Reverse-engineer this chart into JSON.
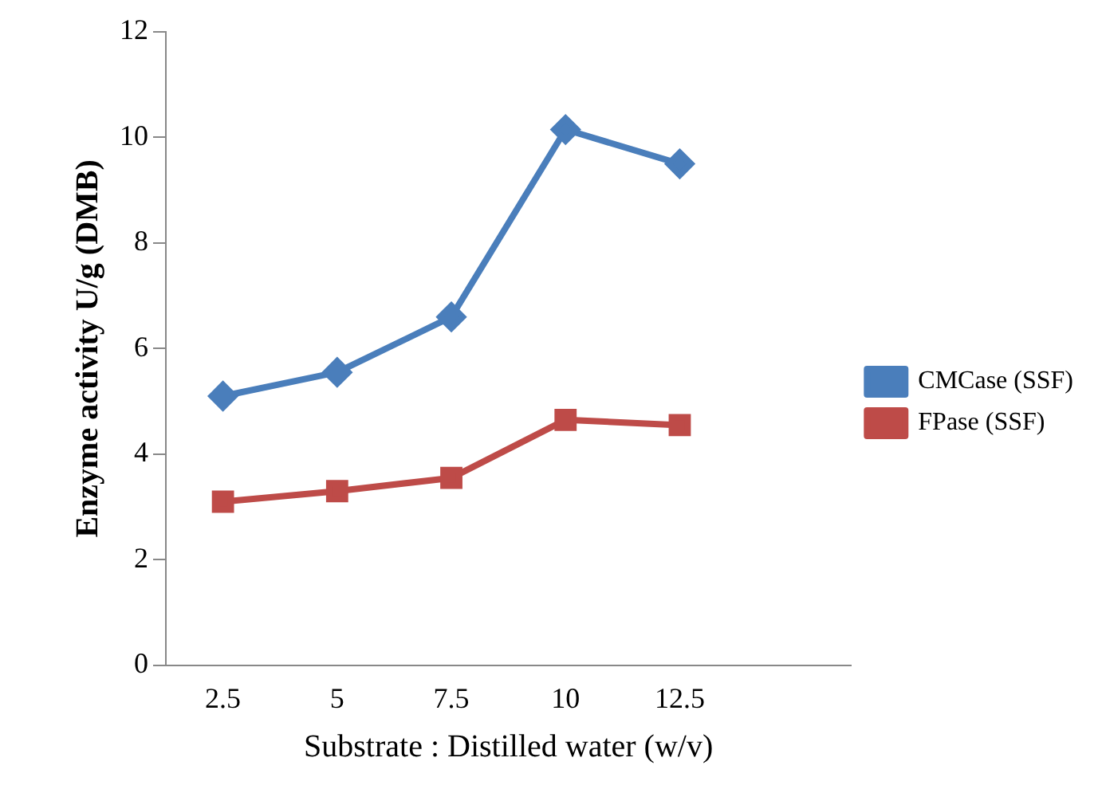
{
  "chart_data": {
    "type": "line",
    "xlabel": "Substrate : Distilled water (w/v)",
    "ylabel": "Enzyme activity U/g (DMB)",
    "categories": [
      "2.5",
      "5",
      "7.5",
      "10",
      "12.5",
      null
    ],
    "series": [
      {
        "name": "CMCase (SSF)",
        "color": "#4a7ebb",
        "marker": "diamond",
        "values": [
          5.1,
          5.55,
          6.6,
          10.15,
          9.5,
          null
        ]
      },
      {
        "name": "FPase (SSF)",
        "color": "#be4b48",
        "marker": "square",
        "values": [
          3.1,
          3.3,
          3.55,
          4.65,
          4.55,
          null
        ]
      }
    ],
    "ylim": [
      0,
      12
    ],
    "yticks": [
      0,
      2,
      4,
      6,
      8,
      10,
      12
    ],
    "grid": false,
    "legend": "right",
    "line_style": "solid"
  }
}
